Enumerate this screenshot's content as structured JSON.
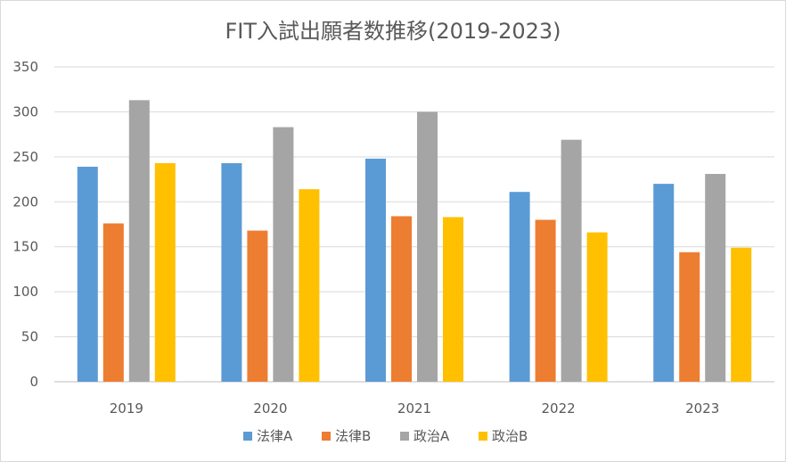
{
  "chart_data": {
    "type": "bar",
    "title": "FIT入試出願者数推移(2019-2023)",
    "xlabel": "",
    "ylabel": "",
    "categories": [
      "2019",
      "2020",
      "2021",
      "2022",
      "2023"
    ],
    "ylim": [
      0,
      350
    ],
    "yticks": [
      0,
      50,
      100,
      150,
      200,
      250,
      300,
      350
    ],
    "grid": true,
    "legend_position": "bottom",
    "series": [
      {
        "name": "法律A",
        "color": "#5b9bd5",
        "values": [
          239,
          243,
          248,
          211,
          220
        ]
      },
      {
        "name": "法律B",
        "color": "#ed7d31",
        "values": [
          176,
          168,
          184,
          180,
          144
        ]
      },
      {
        "name": "政治A",
        "color": "#a5a5a5",
        "values": [
          313,
          283,
          300,
          269,
          231
        ]
      },
      {
        "name": "政治B",
        "color": "#ffc000",
        "values": [
          243,
          214,
          183,
          166,
          149
        ]
      }
    ]
  }
}
